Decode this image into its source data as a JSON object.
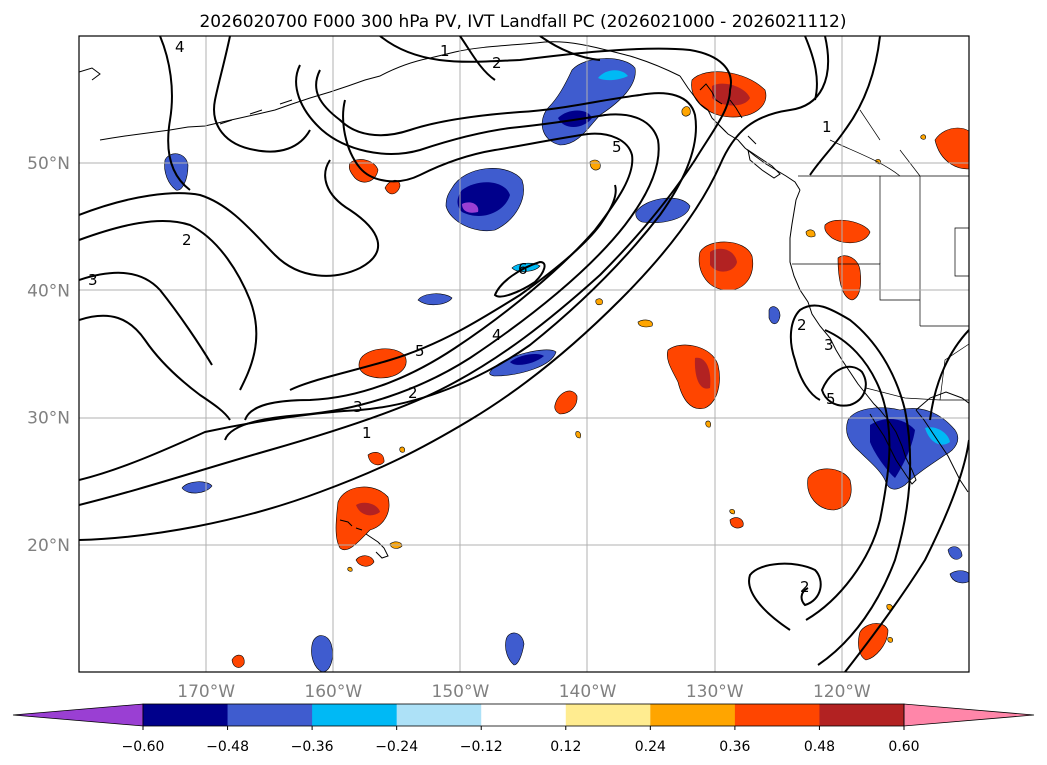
{
  "title": "2026020700 F000 300 hPa PV, IVT Landfall PC (2026021000 - 2026021112)",
  "map": {
    "lon_range": [
      -180,
      -110
    ],
    "lat_range": [
      10,
      60
    ],
    "lon_ticks": [
      {
        "lon": -170,
        "label": "170°W"
      },
      {
        "lon": -160,
        "label": "160°W"
      },
      {
        "lon": -150,
        "label": "150°W"
      },
      {
        "lon": -140,
        "label": "140°W"
      },
      {
        "lon": -130,
        "label": "130°W"
      },
      {
        "lon": -120,
        "label": "120°W"
      }
    ],
    "lat_ticks": [
      {
        "lat": 20,
        "label": "20°N"
      },
      {
        "lat": 30,
        "label": "30°N"
      },
      {
        "lat": 40,
        "label": "40°N"
      },
      {
        "lat": 50,
        "label": "50°N"
      }
    ],
    "grid": true,
    "contour_field": "300 hPa PV",
    "shaded_field": "IVT Landfall PC",
    "contour_labels": [
      "1",
      "2",
      "3",
      "4",
      "5",
      "6"
    ]
  },
  "colorbar": {
    "ticks": [
      "−0.60",
      "−0.48",
      "−0.36",
      "−0.24",
      "−0.12",
      "0.12",
      "0.24",
      "0.36",
      "0.48",
      "0.60"
    ],
    "colors": [
      "#9a3fd3",
      "#00008b",
      "#3f5ccf",
      "#00b9f5",
      "#ade1f7",
      "#ffffff",
      "#ffec90",
      "#ffa500",
      "#ff4500",
      "#b22222",
      "#ff86a9"
    ],
    "extend": "both"
  }
}
